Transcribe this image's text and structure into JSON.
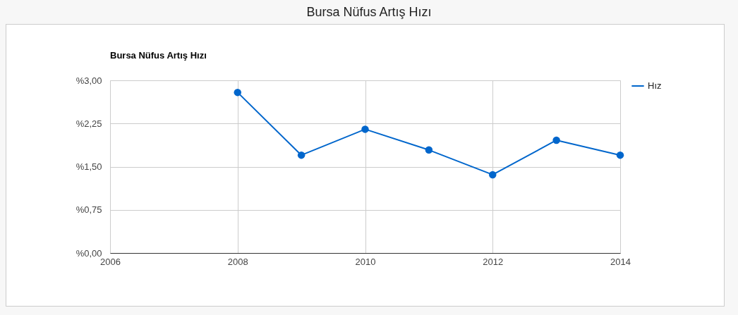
{
  "chart_data": {
    "type": "line",
    "title": "Bursa Nüfus Artış Hızı",
    "subtitle": "Bursa Nüfus Artış Hızı",
    "x": [
      2008,
      2009,
      2010,
      2011,
      2012,
      2013,
      2014
    ],
    "series": [
      {
        "name": "Hız",
        "color": "#0066cc",
        "values": [
          2.79,
          1.7,
          2.15,
          1.79,
          1.36,
          1.96,
          1.7
        ]
      }
    ],
    "xlim": [
      2006,
      2014
    ],
    "xticks": [
      2006,
      2008,
      2010,
      2012,
      2014
    ],
    "ylim": [
      0,
      3
    ],
    "yticks": [
      {
        "value": 0,
        "label": "%0,00"
      },
      {
        "value": 0.75,
        "label": "%0,75"
      },
      {
        "value": 1.5,
        "label": "%1,50"
      },
      {
        "value": 2.25,
        "label": "%2,25"
      },
      {
        "value": 3,
        "label": "%3,00"
      }
    ],
    "grid": true,
    "legend": "top right",
    "marker": "circle",
    "line_style": "solid"
  }
}
